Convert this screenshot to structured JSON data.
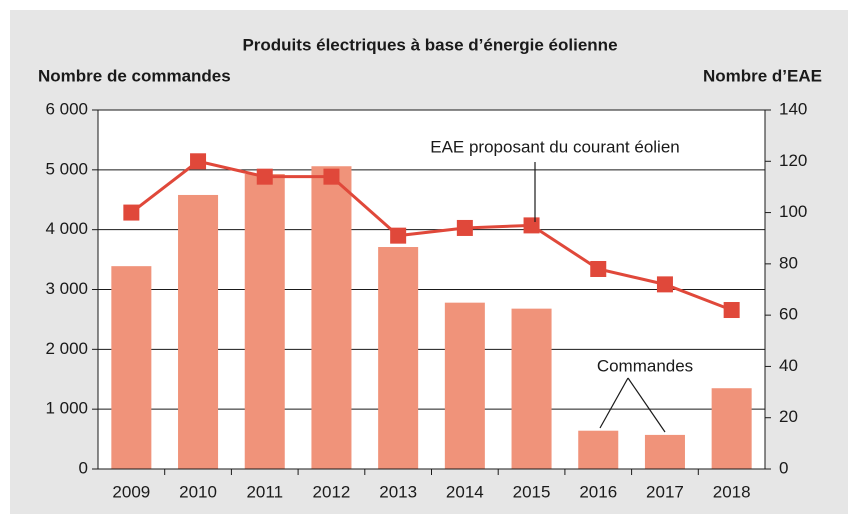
{
  "chart_data": {
    "type": "bar",
    "title": "Produits électriques à base d’énergie éolienne",
    "y_label": "Nombre de commandes",
    "y2_label": "Nombre d’EAE",
    "categories": [
      "2009",
      "2010",
      "2011",
      "2012",
      "2013",
      "2014",
      "2015",
      "2016",
      "2017",
      "2018"
    ],
    "series": [
      {
        "name": "Commandes",
        "type": "bar",
        "color": "#f0937a",
        "values": [
          3390,
          4580,
          4930,
          5060,
          3710,
          2780,
          2680,
          640,
          570,
          1350
        ]
      },
      {
        "name": "EAE proposant du courant éolien",
        "type": "line",
        "axis": "y2",
        "color": "#e0483a",
        "values": [
          100,
          120,
          114,
          114,
          91,
          94,
          95,
          78,
          72,
          62
        ]
      }
    ],
    "ylim": [
      0,
      6000
    ],
    "yticks": [
      0,
      {
        "value": 1000,
        "label": "1 000"
      },
      {
        "value": 2000,
        "label": "2 000"
      },
      {
        "value": 3000,
        "label": "3 000"
      },
      {
        "value": 4000,
        "label": "4 000"
      },
      {
        "value": 5000,
        "label": "5 000"
      },
      {
        "value": 6000,
        "label": "6 000"
      }
    ],
    "y2lim": [
      0,
      140
    ],
    "y2ticks": [
      0,
      20,
      40,
      60,
      80,
      100,
      120,
      140
    ],
    "grid": true
  }
}
